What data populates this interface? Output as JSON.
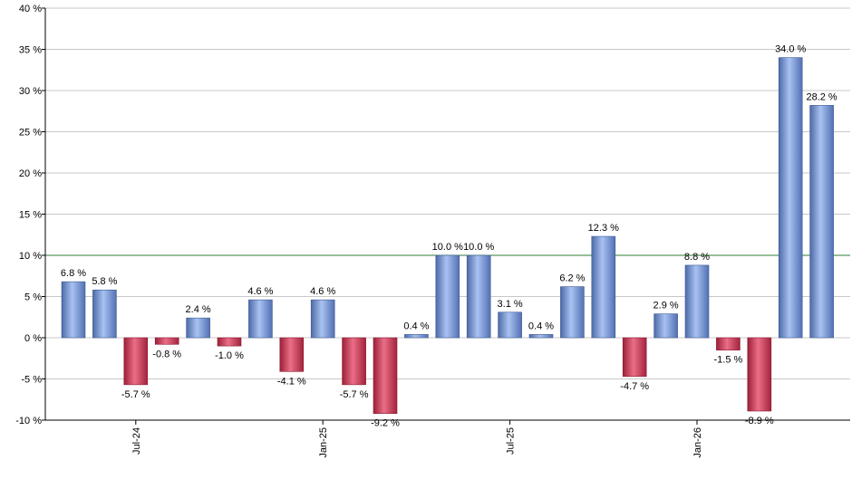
{
  "chart_data": {
    "type": "bar",
    "title": "",
    "xlabel": "",
    "ylabel": "",
    "ylim": [
      -10,
      40
    ],
    "y_ticks": [
      {
        "value": 40,
        "label": "40 %"
      },
      {
        "value": 35,
        "label": "35 %"
      },
      {
        "value": 30,
        "label": "30 %"
      },
      {
        "value": 25,
        "label": "25 %"
      },
      {
        "value": 20,
        "label": "20 %"
      },
      {
        "value": 15,
        "label": "15 %"
      },
      {
        "value": 10,
        "label": "10 %"
      },
      {
        "value": 5,
        "label": "5 %"
      },
      {
        "value": 0,
        "label": "0 %"
      },
      {
        "value": -5,
        "label": "-5 %"
      },
      {
        "value": -10,
        "label": "-10 %"
      }
    ],
    "x_ticks": [
      {
        "index": 2,
        "label": "Jul-24"
      },
      {
        "index": 8,
        "label": "Jan-25"
      },
      {
        "index": 14,
        "label": "Jul-25"
      },
      {
        "index": 20,
        "label": "Jan-26"
      }
    ],
    "values": [
      6.8,
      5.8,
      -5.7,
      -0.8,
      2.4,
      -1.0,
      4.6,
      -4.1,
      4.6,
      -5.7,
      -9.2,
      0.4,
      10.0,
      10.0,
      3.1,
      0.4,
      6.2,
      12.3,
      -4.7,
      2.9,
      8.8,
      -1.5,
      -8.9,
      34.0,
      28.2
    ],
    "value_labels": [
      "6.8 %",
      "5.8 %",
      "-5.7 %",
      "-0.8 %",
      "2.4 %",
      "-1.0 %",
      "4.6 %",
      "-4.1 %",
      "4.6 %",
      "-5.7 %",
      "-9.2 %",
      "0.4 %",
      "10.0 %",
      "10.0 %",
      "3.1 %",
      "0.4 %",
      "6.2 %",
      "12.3 %",
      "-4.7 %",
      "2.9 %",
      "8.8 %",
      "-1.5 %",
      "-8.9 %",
      "34.0 %",
      "28.2 %"
    ],
    "reference_line": {
      "value": 10,
      "color": "#2e7d32"
    },
    "grid": true,
    "legend": "none",
    "colors": {
      "positive": "#6f8fd4",
      "negative": "#c8334f",
      "grid": "#c8c8c8",
      "axis": "#000000"
    }
  }
}
